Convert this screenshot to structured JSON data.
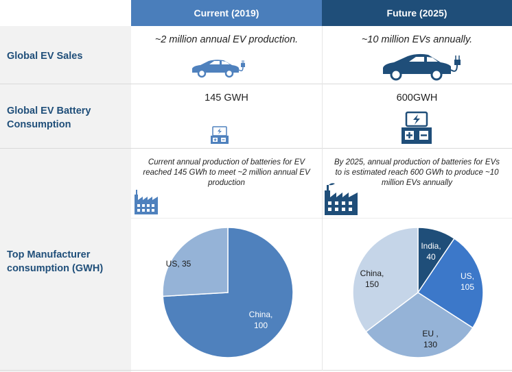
{
  "header": {
    "current_label": "Current (2019)",
    "future_label": "Future (2025)"
  },
  "rows": {
    "sales_label": "Global EV Sales",
    "battery_label_line1": "Global EV Battery",
    "battery_label_line2": "Consumption",
    "manufacturer_label_line1": "Top Manufacturer",
    "manufacturer_label_line2": "consumption (GWH)"
  },
  "current": {
    "sales_text": "~2 million annual EV production.",
    "battery_text": "145 GWH",
    "production_note_line1": "Current annual production of batteries for EV",
    "production_note_line2": "reached 145 GWh to meet ~2 million annual EV",
    "production_note_line3": "production"
  },
  "future": {
    "sales_text": "~10 million EVs annually.",
    "battery_text": "600GWH",
    "production_note_line1": "By 2025, annual production of batteries for EVs",
    "production_note_line2": "to is estimated reach 600 GWh to produce ~10",
    "production_note_line3": "million EVs annually"
  },
  "icons": {
    "car": "electric-car-icon",
    "battery": "battery-icon",
    "factory": "factory-icon"
  },
  "colors": {
    "header_current": "#4a7ebb",
    "header_future": "#1f4e79",
    "row_label": "#1f4e79",
    "row_label_bg": "#f2f2f2"
  },
  "chart_data": [
    {
      "type": "pie",
      "title": "",
      "series": [
        {
          "label_line1": "China,",
          "label_line2": "100",
          "value": 100,
          "color": "#4f81bd"
        },
        {
          "label_line1": "US, 35",
          "label_line2": "",
          "value": 35,
          "color": "#95b3d7"
        }
      ]
    },
    {
      "type": "pie",
      "title": "",
      "series": [
        {
          "label_line1": "India,",
          "label_line2": "40",
          "value": 40,
          "color": "#1f4e79"
        },
        {
          "label_line1": "US,",
          "label_line2": "105",
          "value": 105,
          "color": "#3c78c9"
        },
        {
          "label_line1": "EU ,",
          "label_line2": "130",
          "value": 130,
          "color": "#95b3d7"
        },
        {
          "label_line1": "China,",
          "label_line2": "150",
          "value": 150,
          "color": "#c5d5e8"
        }
      ]
    }
  ]
}
